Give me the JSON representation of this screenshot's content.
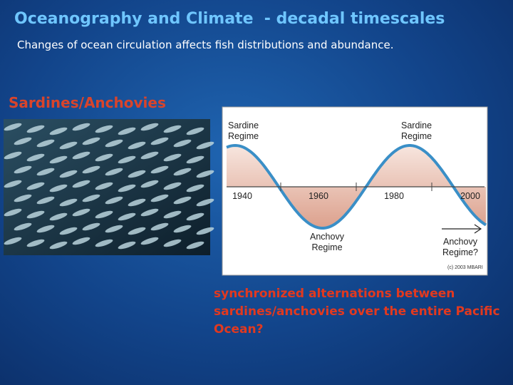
{
  "header": {
    "title": "Oceanography and Climate  - decadal timescales",
    "subtitle": "Changes of ocean circulation affects fish distributions and abundance."
  },
  "section": {
    "heading": "Sardines/Anchovies"
  },
  "figure": {
    "regime_labels": [
      "Sardine Regime",
      "Sardine Regime",
      "Anchovy Regime",
      "Anchovy Regime?"
    ],
    "years": [
      "1940",
      "1960",
      "1980",
      "2000"
    ],
    "credit": "(c) 2003 MBARI"
  },
  "caption": "synchronized alternations between sardines/anchovies over the entire Pacific Ocean?"
}
